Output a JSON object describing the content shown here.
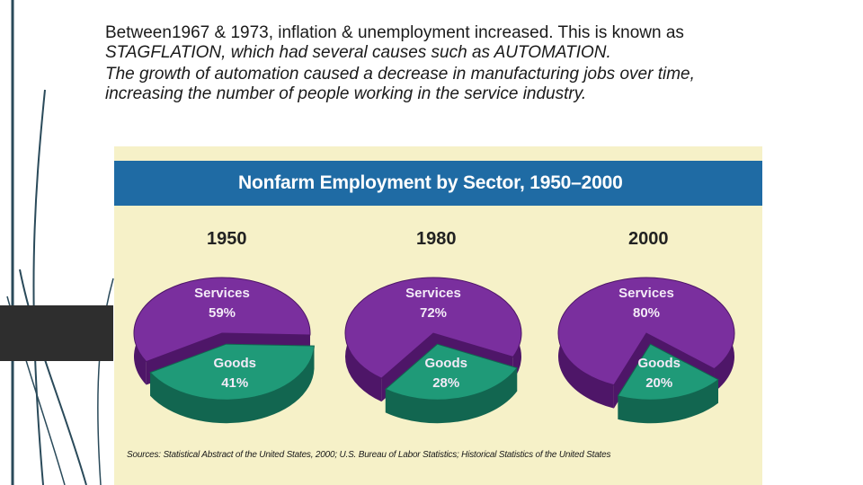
{
  "slide": {
    "paragraph1_prefix": "Between1967 & 1973, inflation & unemployment increased. This is known as ",
    "paragraph1_emphasis": "STAGFLATION, which had several causes such as AUTOMATION.",
    "paragraph2": "The growth of automation caused a decrease in manufacturing jobs over time, increasing the number of people working in the service industry."
  },
  "colors": {
    "services": "#7a2f9e",
    "goods": "#1f9a78",
    "title_bar": "#1f6ba4",
    "chart_background": "#f6f1c8"
  },
  "chart_data": {
    "type": "pie",
    "title": "Nonfarm Employment by Sector, 1950–2000",
    "source": "Sources: Statistical Abstract of the United States, 2000; U.S. Bureau of Labor Statistics; Historical Statistics of the United States",
    "charts": [
      {
        "year": "1950",
        "slices": [
          {
            "name": "Services",
            "value": 59,
            "label": "59%"
          },
          {
            "name": "Goods",
            "value": 41,
            "label": "41%"
          }
        ]
      },
      {
        "year": "1980",
        "slices": [
          {
            "name": "Services",
            "value": 72,
            "label": "72%"
          },
          {
            "name": "Goods",
            "value": 28,
            "label": "28%"
          }
        ]
      },
      {
        "year": "2000",
        "slices": [
          {
            "name": "Services",
            "value": 80,
            "label": "80%"
          },
          {
            "name": "Goods",
            "value": 20,
            "label": "20%"
          }
        ]
      }
    ]
  }
}
